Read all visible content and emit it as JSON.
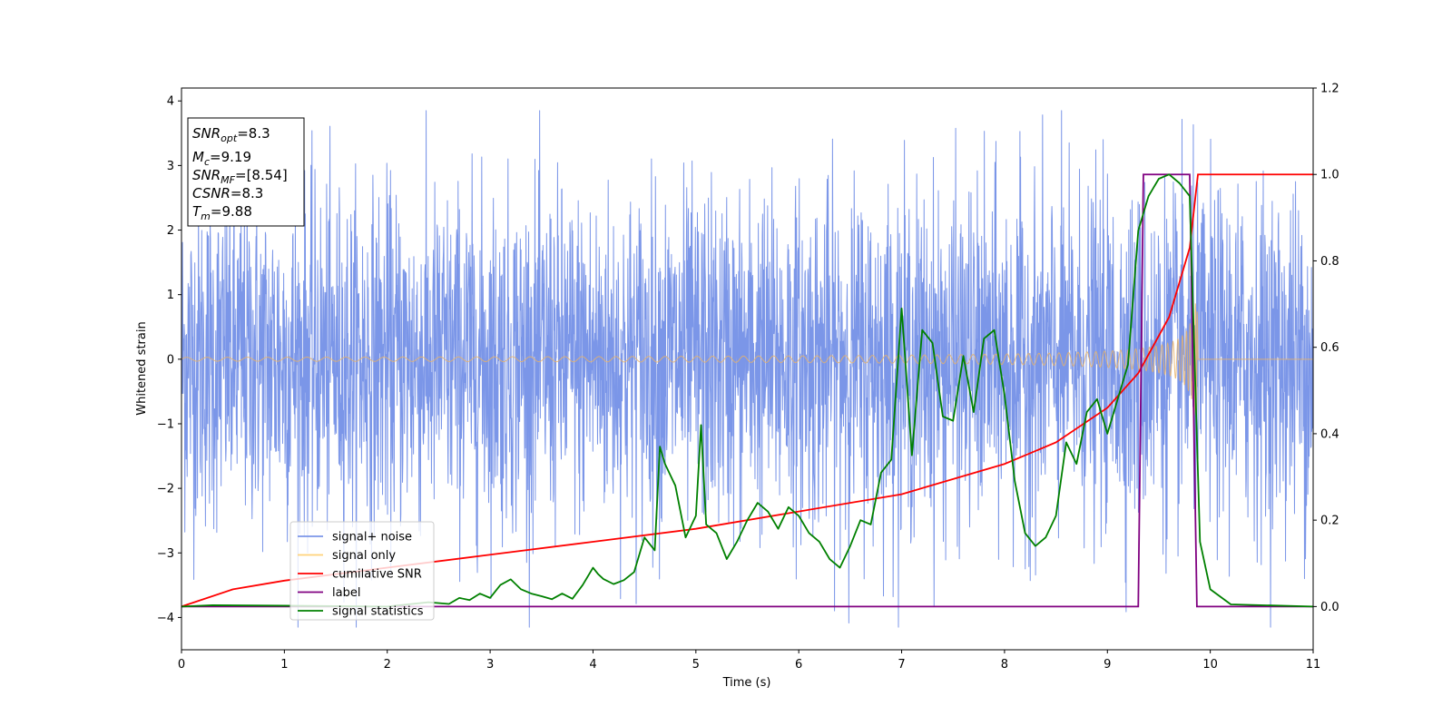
{
  "chart_data": {
    "type": "line",
    "xlabel": "Time (s)",
    "ylabel": "Whitened strain",
    "xlim": [
      0,
      11
    ],
    "ylim_left": [
      -4.5,
      4.2
    ],
    "ylim_right": [
      -0.1,
      1.2
    ],
    "x_ticks": [
      "0",
      "1",
      "2",
      "3",
      "4",
      "5",
      "6",
      "7",
      "8",
      "9",
      "10",
      "11"
    ],
    "y_left_ticks": [
      "4",
      "3",
      "2",
      "1",
      "0",
      "−1",
      "−2",
      "−3",
      "−4"
    ],
    "y_left_tick_values": [
      4,
      3,
      2,
      1,
      0,
      -1,
      -2,
      -3,
      -4
    ],
    "y_right_ticks": [
      "1.2",
      "1.0",
      "0.8",
      "0.6",
      "0.4",
      "0.2",
      "0.0"
    ],
    "y_right_tick_values": [
      1.2,
      1.0,
      0.8,
      0.6,
      0.4,
      0.2,
      0.0
    ],
    "colors": {
      "noise": "#7b96e8",
      "signal": "#e8b36a",
      "cumulative": "#ff0000",
      "label": "#800080",
      "statistics": "#008000"
    },
    "legend": {
      "placement": "lower-left",
      "entries": [
        {
          "name": "signal+ noise",
          "color": "#7b96e8"
        },
        {
          "name": "signal only",
          "color": "#ffd27a"
        },
        {
          "name": "cumilative SNR",
          "color": "#ff0000"
        },
        {
          "name": "label",
          "color": "#800080"
        },
        {
          "name": "signal statistics",
          "color": "#008000"
        }
      ]
    },
    "info_box": {
      "snr_opt_label": "SNR",
      "snr_opt_sub": "opt",
      "snr_opt_value": "=8.3",
      "mc_label": "M",
      "mc_sub": "c",
      "mc_value": "=9.19",
      "snr_mf_label": "SNR",
      "snr_mf_sub": "MF",
      "snr_mf_value": "=[8.54]",
      "csnr_label": "CSNR",
      "csnr_value": "=8.3",
      "tm_label": "T",
      "tm_sub": "m",
      "tm_value": "=9.88"
    },
    "noise_series": {
      "name": "signal+ noise",
      "x_range": [
        0,
        11
      ],
      "typical_amplitude": 1.3,
      "peak_max": 3.85,
      "peak_min": -4.15
    },
    "signal_series": {
      "name": "signal only",
      "merger_time": 9.88,
      "start_amplitude": 0.03,
      "peak_amplitude": 0.9
    },
    "cumulative_snr": {
      "name": "cumilative SNR",
      "axis": "right",
      "x": [
        0,
        0.5,
        1,
        2,
        3,
        4,
        5,
        6,
        7,
        8,
        8.5,
        9,
        9.3,
        9.6,
        9.8,
        9.88,
        11
      ],
      "y": [
        0,
        0.04,
        0.06,
        0.09,
        0.12,
        0.15,
        0.18,
        0.22,
        0.26,
        0.33,
        0.38,
        0.46,
        0.54,
        0.67,
        0.83,
        1.0,
        1.0
      ]
    },
    "label_series": {
      "name": "label",
      "axis": "right",
      "x": [
        0,
        9.3,
        9.35,
        9.8,
        9.87,
        11
      ],
      "y": [
        0,
        0,
        1.0,
        1.0,
        0,
        0
      ]
    },
    "statistics_series": {
      "name": "signal statistics",
      "axis": "right",
      "x": [
        0,
        0.3,
        1.0,
        2.0,
        2.4,
        2.6,
        2.7,
        2.8,
        2.9,
        3.0,
        3.1,
        3.2,
        3.3,
        3.4,
        3.5,
        3.6,
        3.7,
        3.8,
        3.9,
        4.0,
        4.05,
        4.1,
        4.2,
        4.3,
        4.4,
        4.5,
        4.6,
        4.65,
        4.7,
        4.8,
        4.9,
        5.0,
        5.05,
        5.1,
        5.2,
        5.3,
        5.4,
        5.5,
        5.6,
        5.7,
        5.8,
        5.9,
        6.0,
        6.1,
        6.2,
        6.3,
        6.4,
        6.5,
        6.6,
        6.7,
        6.8,
        6.9,
        7.0,
        7.1,
        7.2,
        7.3,
        7.4,
        7.5,
        7.6,
        7.7,
        7.8,
        7.9,
        8.0,
        8.1,
        8.2,
        8.3,
        8.4,
        8.5,
        8.6,
        8.7,
        8.8,
        8.9,
        9.0,
        9.1,
        9.2,
        9.3,
        9.4,
        9.5,
        9.6,
        9.7,
        9.8,
        9.9,
        10.0,
        10.2,
        11.0
      ],
      "y": [
        0.0,
        0.003,
        0.002,
        0.0,
        0.01,
        0.006,
        0.02,
        0.015,
        0.03,
        0.02,
        0.05,
        0.063,
        0.04,
        0.03,
        0.024,
        0.017,
        0.03,
        0.018,
        0.05,
        0.09,
        0.075,
        0.064,
        0.052,
        0.061,
        0.08,
        0.16,
        0.13,
        0.37,
        0.33,
        0.28,
        0.16,
        0.21,
        0.42,
        0.19,
        0.17,
        0.11,
        0.15,
        0.2,
        0.24,
        0.22,
        0.18,
        0.23,
        0.21,
        0.17,
        0.15,
        0.11,
        0.09,
        0.14,
        0.2,
        0.19,
        0.31,
        0.34,
        0.69,
        0.35,
        0.64,
        0.61,
        0.44,
        0.43,
        0.58,
        0.45,
        0.62,
        0.64,
        0.49,
        0.29,
        0.17,
        0.14,
        0.16,
        0.21,
        0.38,
        0.33,
        0.45,
        0.48,
        0.4,
        0.48,
        0.56,
        0.87,
        0.95,
        0.99,
        1.0,
        0.98,
        0.95,
        0.15,
        0.04,
        0.005,
        0.0
      ]
    }
  }
}
